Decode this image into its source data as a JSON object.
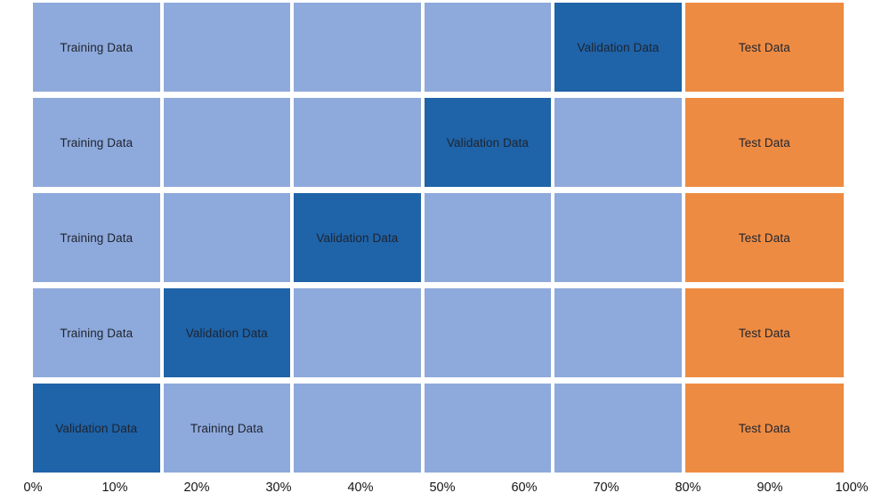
{
  "diagram": {
    "description": "k-fold cross-validation data split diagram",
    "labels": {
      "training": "Training Data",
      "validation": "Validation Data",
      "test": "Test Data"
    },
    "colors": {
      "training": "#8EA9DB",
      "validation": "#1F63A8",
      "test": "#EE8B42",
      "cell_text": "#1E2430",
      "axis_text": "#141414",
      "background": "#FFFFFF"
    },
    "column_widths_percent": [
      16,
      16,
      16,
      16,
      16,
      20
    ],
    "rows": [
      {
        "cells": [
          {
            "type": "training",
            "label": "Training Data"
          },
          {
            "type": "training",
            "label": ""
          },
          {
            "type": "training",
            "label": ""
          },
          {
            "type": "training",
            "label": ""
          },
          {
            "type": "validation",
            "label": "Validation Data"
          },
          {
            "type": "test",
            "label": "Test Data"
          }
        ]
      },
      {
        "cells": [
          {
            "type": "training",
            "label": "Training Data"
          },
          {
            "type": "training",
            "label": ""
          },
          {
            "type": "training",
            "label": ""
          },
          {
            "type": "validation",
            "label": "Validation Data"
          },
          {
            "type": "training",
            "label": ""
          },
          {
            "type": "test",
            "label": "Test Data"
          }
        ]
      },
      {
        "cells": [
          {
            "type": "training",
            "label": "Training Data"
          },
          {
            "type": "training",
            "label": ""
          },
          {
            "type": "validation",
            "label": "Validation Data"
          },
          {
            "type": "training",
            "label": ""
          },
          {
            "type": "training",
            "label": ""
          },
          {
            "type": "test",
            "label": "Test Data"
          }
        ]
      },
      {
        "cells": [
          {
            "type": "training",
            "label": "Training Data"
          },
          {
            "type": "validation",
            "label": "Validation Data"
          },
          {
            "type": "training",
            "label": ""
          },
          {
            "type": "training",
            "label": ""
          },
          {
            "type": "training",
            "label": ""
          },
          {
            "type": "test",
            "label": "Test Data"
          }
        ]
      },
      {
        "cells": [
          {
            "type": "validation",
            "label": "Validation Data"
          },
          {
            "type": "training",
            "label": "Training Data"
          },
          {
            "type": "training",
            "label": ""
          },
          {
            "type": "training",
            "label": ""
          },
          {
            "type": "training",
            "label": ""
          },
          {
            "type": "test",
            "label": "Test Data"
          }
        ]
      }
    ],
    "axis": {
      "ticks": [
        "0%",
        "10%",
        "20%",
        "30%",
        "40%",
        "50%",
        "60%",
        "70%",
        "80%",
        "90%",
        "100%"
      ]
    }
  }
}
